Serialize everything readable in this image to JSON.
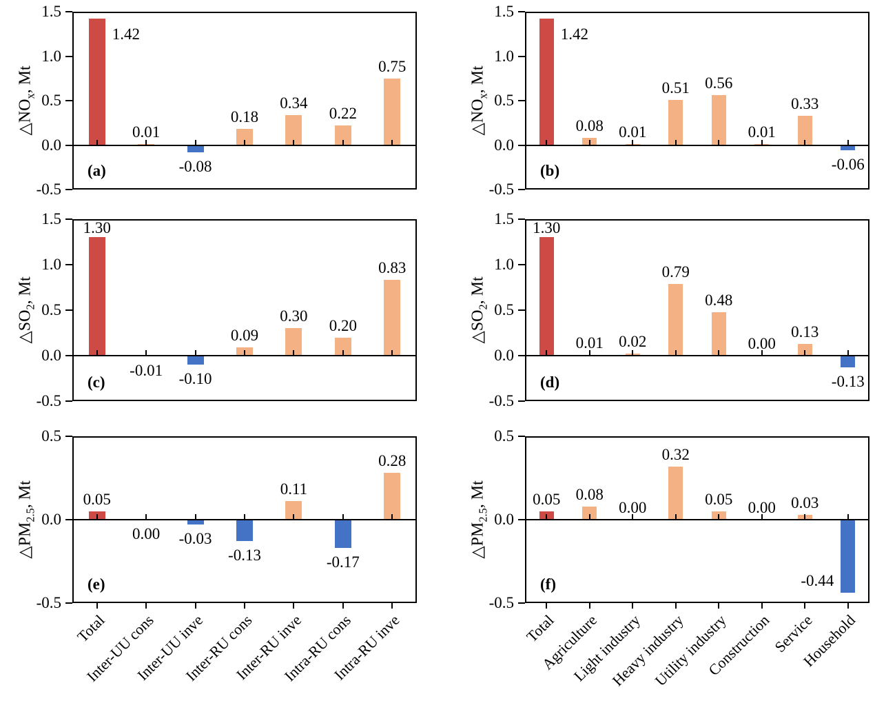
{
  "colors": {
    "total_bar": "#CE4A45",
    "positive_bar": "#F4B183",
    "negative_bar": "#4472C4",
    "axis": "#000000"
  },
  "chart_data": [
    {
      "panel": "(a)",
      "type": "bar",
      "ylabel": {
        "pre": "△NO",
        "sub": "x",
        "post": ", Mt"
      },
      "ylim": [
        -0.5,
        1.5
      ],
      "yticks": [
        "1.5",
        "1.0",
        "0.5",
        "0.0",
        "-0.5"
      ],
      "categories": [
        "Total",
        "Inter-UU cons",
        "Inter-UU inve",
        "Inter-RU cons",
        "Inter-RU inve",
        "Intra-RU cons",
        "Intra-RU inve"
      ],
      "values": [
        1.42,
        0.01,
        -0.08,
        0.18,
        0.34,
        0.22,
        0.75
      ],
      "labels": [
        "1.42",
        "0.01",
        "-0.08",
        "0.18",
        "0.34",
        "0.22",
        "0.75"
      ],
      "label_pos": {
        "0": "right"
      },
      "show_xlabels": false
    },
    {
      "panel": "(b)",
      "type": "bar",
      "ylabel": {
        "pre": "△NO",
        "sub": "x",
        "post": ", Mt"
      },
      "ylim": [
        -0.5,
        1.5
      ],
      "yticks": [
        "1.5",
        "1.0",
        "0.5",
        "0.0",
        "-0.5"
      ],
      "categories": [
        "Total",
        "Agriculture",
        "Light industry",
        "Heavy industry",
        "Utility industry",
        "Construction",
        "Service",
        "Household"
      ],
      "values": [
        1.42,
        0.08,
        0.01,
        0.51,
        0.56,
        0.01,
        0.33,
        -0.06
      ],
      "labels": [
        "1.42",
        "0.08",
        "0.01",
        "0.51",
        "0.56",
        "0.01",
        "0.33",
        "-0.06"
      ],
      "label_pos": {
        "0": "right"
      },
      "show_xlabels": false
    },
    {
      "panel": "(c)",
      "type": "bar",
      "ylabel": {
        "pre": "△SO",
        "sub": "2",
        "post": ", Mt"
      },
      "ylim": [
        -0.5,
        1.5
      ],
      "yticks": [
        "1.5",
        "1.0",
        "0.5",
        "0.0",
        "-0.5"
      ],
      "categories": [
        "Total",
        "Inter-UU cons",
        "Inter-UU inve",
        "Inter-RU cons",
        "Inter-RU inve",
        "Intra-RU cons",
        "Intra-RU inve"
      ],
      "values": [
        1.3,
        -0.01,
        -0.1,
        0.09,
        0.3,
        0.2,
        0.83
      ],
      "labels": [
        "1.30",
        "-0.01",
        "-0.10",
        "0.09",
        "0.30",
        "0.20",
        "0.83"
      ],
      "label_pos": {},
      "show_xlabels": false
    },
    {
      "panel": "(d)",
      "type": "bar",
      "ylabel": {
        "pre": "△SO",
        "sub": "2",
        "post": ", Mt"
      },
      "ylim": [
        -0.5,
        1.5
      ],
      "yticks": [
        "1.5",
        "1.0",
        "0.5",
        "0.0",
        "-0.5"
      ],
      "categories": [
        "Total",
        "Agriculture",
        "Light industry",
        "Heavy industry",
        "Utility industry",
        "Construction",
        "Service",
        "Household"
      ],
      "values": [
        1.3,
        0.01,
        0.02,
        0.79,
        0.48,
        0.0,
        0.13,
        -0.13
      ],
      "labels": [
        "1.30",
        "0.01",
        "0.02",
        "0.79",
        "0.48",
        "0.00",
        "0.13",
        "-0.13"
      ],
      "label_pos": {},
      "show_xlabels": false
    },
    {
      "panel": "(e)",
      "type": "bar",
      "ylabel": {
        "pre": "△PM",
        "sub": "2.5",
        "post": ", Mt"
      },
      "ylim": [
        -0.5,
        0.5
      ],
      "yticks": [
        "0.5",
        "0.0",
        "-0.5"
      ],
      "categories": [
        "Total",
        "Inter-UU cons",
        "Inter-UU inve",
        "Inter-RU cons",
        "Inter-RU inve",
        "Intra-RU cons",
        "Intra-RU inve"
      ],
      "values": [
        0.05,
        0.0,
        -0.03,
        -0.13,
        0.11,
        -0.17,
        0.28
      ],
      "labels": [
        "0.05",
        "0.00",
        "-0.03",
        "-0.13",
        "0.11",
        "-0.17",
        "0.28"
      ],
      "label_pos": {
        "1": "below"
      },
      "show_xlabels": true
    },
    {
      "panel": "(f)",
      "type": "bar",
      "ylabel": {
        "pre": "△PM",
        "sub": "2.5",
        "post": ", Mt"
      },
      "ylim": [
        -0.5,
        0.5
      ],
      "yticks": [
        "0.5",
        "0.0",
        "-0.5"
      ],
      "categories": [
        "Total",
        "Agriculture",
        "Light industry",
        "Heavy industry",
        "Utility industry",
        "Construction",
        "Service",
        "Household"
      ],
      "values": [
        0.05,
        0.08,
        0.0,
        0.32,
        0.05,
        0.0,
        0.03,
        -0.44
      ],
      "labels": [
        "0.05",
        "0.08",
        "0.00",
        "0.32",
        "0.05",
        "0.00",
        "0.03",
        "-0.44"
      ],
      "label_pos": {
        "7": "left"
      },
      "show_xlabels": true
    }
  ]
}
